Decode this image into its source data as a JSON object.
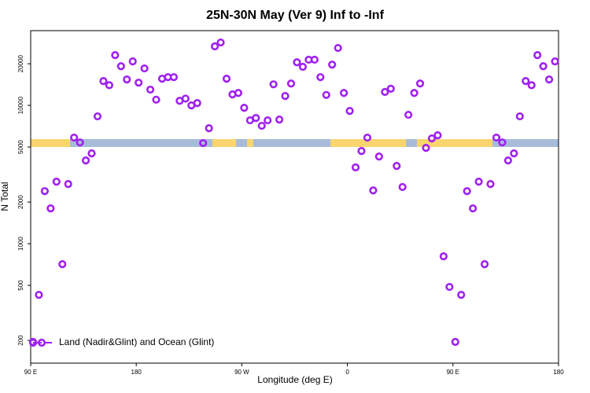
{
  "chart_data": {
    "type": "scatter",
    "title": "25N-30N May (Ver 9)   Inf to -Inf",
    "xlabel": "Longitude (deg E)",
    "ylabel": "N Total",
    "xlim": [
      90,
      540
    ],
    "xticks": [
      {
        "value": 90,
        "label": "90 E"
      },
      {
        "value": 180,
        "label": "180"
      },
      {
        "value": 270,
        "label": "90 W"
      },
      {
        "value": 360,
        "label": "0"
      },
      {
        "value": 450,
        "label": "90 E"
      },
      {
        "value": 540,
        "label": "180"
      }
    ],
    "ylim": [
      137,
      34700
    ],
    "yticks": [
      200,
      500,
      1000,
      2000,
      5000,
      10000,
      20000
    ],
    "log_y": true,
    "legend": "bottomleft",
    "series": [
      {
        "name": "Land (Nadir&Glint) and Ocean (Glint)",
        "color": "#a020f0",
        "x": [
          92,
          97,
          102,
          107,
          112,
          117,
          122,
          127,
          132,
          137,
          142,
          147,
          152,
          157,
          162,
          167,
          172,
          177,
          182,
          187,
          192,
          197,
          202,
          207,
          212,
          217,
          222,
          227,
          232,
          237,
          242,
          247,
          252,
          257,
          262,
          267,
          272,
          277,
          282,
          287,
          292,
          297,
          302,
          307,
          312,
          317,
          322,
          327,
          332,
          337,
          342,
          347,
          352,
          357,
          362,
          367,
          372,
          377,
          382,
          387,
          392,
          397,
          402,
          407,
          412,
          417,
          422,
          427,
          432,
          437,
          442,
          447,
          452,
          457,
          462,
          467,
          472,
          477,
          482,
          487,
          492,
          497,
          502,
          507,
          512,
          517,
          522,
          527,
          532,
          537
        ],
        "values": [
          195,
          427,
          2400,
          1800,
          2810,
          711,
          2700,
          5850,
          5400,
          4000,
          4500,
          8330,
          15000,
          14000,
          23100,
          19200,
          15400,
          20800,
          14600,
          18500,
          13000,
          11000,
          15600,
          16000,
          16000,
          10800,
          11200,
          10000,
          10400,
          5340,
          6840,
          26700,
          28500,
          15600,
          12000,
          12300,
          9610,
          7800,
          8110,
          7120,
          7800,
          14200,
          7900,
          11700,
          14400,
          20500,
          19000,
          21400,
          21400,
          16000,
          11900,
          19700,
          26000,
          12300,
          9120,
          3560,
          4680,
          5850,
          2430,
          4270,
          12500,
          13200,
          3650,
          2570,
          8550,
          12300,
          14400,
          4930,
          5770,
          6080,
          811,
          487,
          195,
          427,
          2400,
          1800,
          2810,
          711,
          2700,
          5850,
          5400,
          4000,
          4500,
          8330,
          15000,
          14000,
          23100,
          19200,
          15400,
          20800
        ]
      }
    ]
  }
}
